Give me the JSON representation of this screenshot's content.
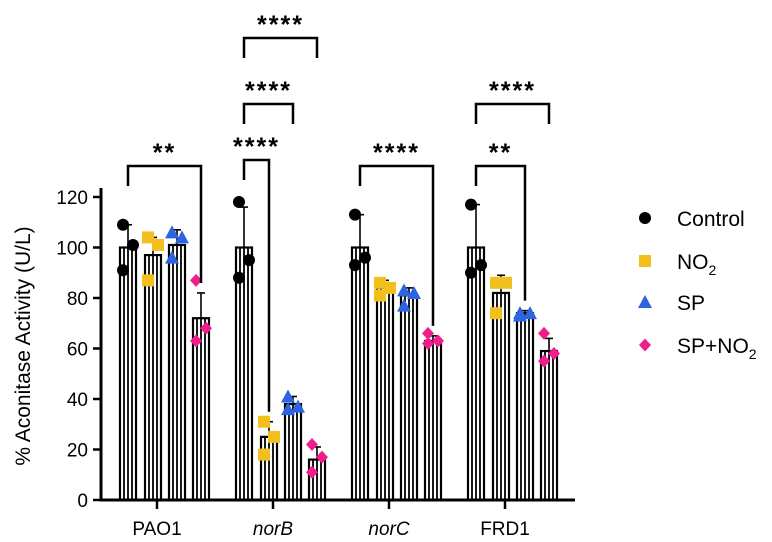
{
  "chart_data": {
    "type": "bar",
    "title": "",
    "xlabel": "",
    "ylabel": "% Aconitase Activity (U/L)",
    "ylim": [
      0,
      130
    ],
    "yticks": [
      "0",
      "20",
      "40",
      "60",
      "80",
      "100",
      "120"
    ],
    "grid": false,
    "legend_position": "right",
    "categories": [
      {
        "label": "PAO1",
        "italic": false
      },
      {
        "label": "norB",
        "italic": true
      },
      {
        "label": "norC",
        "italic": true
      },
      {
        "label": "FRD1",
        "italic": false
      }
    ],
    "series": [
      {
        "name": "Control",
        "legend_text": "Control",
        "legend_sub": "",
        "legend_suffix": "",
        "marker": "circle",
        "color": "#000000",
        "values": [
          100,
          100,
          100,
          100
        ],
        "errors": [
          9,
          16,
          13,
          17
        ],
        "points": [
          [
            109,
            101,
            91
          ],
          [
            118,
            95,
            88
          ],
          [
            113,
            96,
            93
          ],
          [
            117,
            93,
            90
          ]
        ]
      },
      {
        "name": "NO2",
        "legend_text": "NO",
        "legend_sub": "2",
        "legend_suffix": "",
        "marker": "square",
        "color": "#F2C01D",
        "values": [
          97,
          25,
          84,
          82
        ],
        "errors": [
          7,
          6,
          3,
          7
        ],
        "points": [
          [
            104,
            101,
            87
          ],
          [
            31,
            25,
            18
          ],
          [
            86,
            84,
            81
          ],
          [
            86,
            86,
            74
          ]
        ]
      },
      {
        "name": "SP",
        "legend_text": "SP",
        "legend_sub": "",
        "legend_suffix": "",
        "marker": "triangle",
        "color": "#2E64E0",
        "values": [
          101,
          38,
          81,
          74
        ],
        "errors": [
          6,
          3,
          3,
          1
        ],
        "points": [
          [
            106,
            104,
            96
          ],
          [
            41,
            37,
            36
          ],
          [
            83,
            82,
            77
          ],
          [
            74,
            74,
            73
          ]
        ]
      },
      {
        "name": "SP+NO2",
        "legend_text": "SP+NO",
        "legend_sub": "2",
        "legend_suffix": "",
        "marker": "diamond",
        "color": "#F01E8C",
        "values": [
          72,
          16,
          63,
          59
        ],
        "errors": [
          10,
          5,
          2,
          5
        ],
        "points": [
          [
            87,
            68,
            63
          ],
          [
            22,
            17,
            11
          ],
          [
            66,
            63,
            62
          ],
          [
            66,
            58,
            55
          ]
        ]
      }
    ],
    "significance": [
      {
        "category": 0,
        "from": 0,
        "to": 3,
        "label": "**",
        "level": 0
      },
      {
        "category": 1,
        "from": 0,
        "to": 1,
        "label": "****",
        "level": 0
      },
      {
        "category": 1,
        "from": 0,
        "to": 2,
        "label": "****",
        "level": 1
      },
      {
        "category": 1,
        "from": 0,
        "to": 3,
        "label": "****",
        "level": 2
      },
      {
        "category": 2,
        "from": 0,
        "to": 3,
        "label": "****",
        "level": 0
      },
      {
        "category": 3,
        "from": 0,
        "to": 2,
        "label": "**",
        "level": 0
      },
      {
        "category": 3,
        "from": 0,
        "to": 3,
        "label": "****",
        "level": 1
      }
    ]
  }
}
